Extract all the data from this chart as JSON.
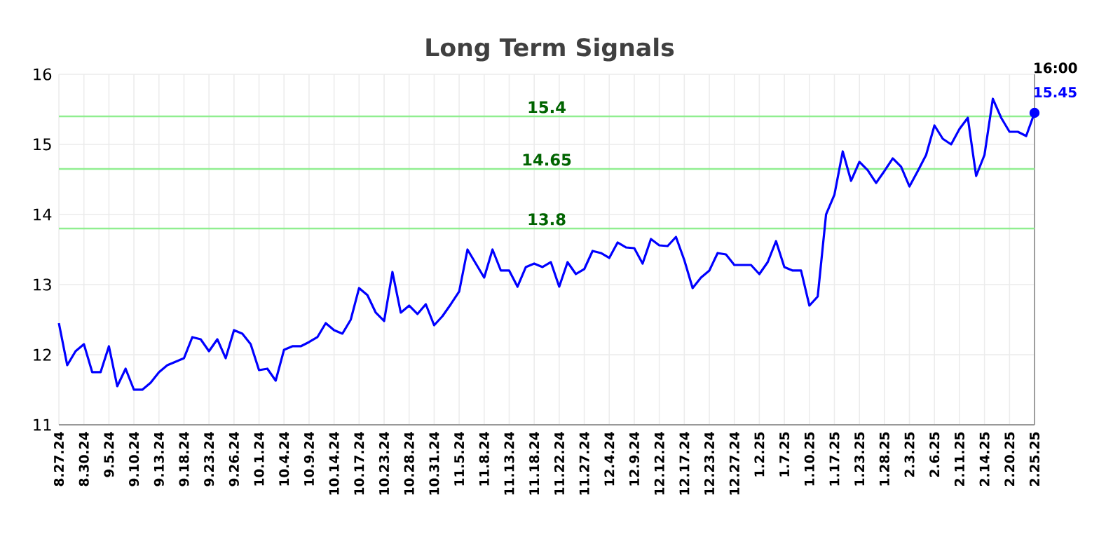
{
  "chart_data": {
    "type": "line",
    "title": "Long Term Signals",
    "categories": [
      "8.27.24",
      null,
      null,
      "8.30.24",
      null,
      null,
      "9.5.24",
      null,
      null,
      "9.10.24",
      null,
      null,
      "9.13.24",
      null,
      null,
      "9.18.24",
      null,
      null,
      "9.23.24",
      null,
      null,
      "9.26.24",
      null,
      null,
      "10.1.24",
      null,
      null,
      "10.4.24",
      null,
      null,
      "10.9.24",
      null,
      null,
      "10.14.24",
      null,
      null,
      "10.17.24",
      null,
      null,
      "10.23.24",
      null,
      null,
      "10.28.24",
      null,
      null,
      "10.31.24",
      null,
      null,
      "11.5.24",
      null,
      null,
      "11.8.24",
      null,
      null,
      "11.13.24",
      null,
      null,
      "11.18.24",
      null,
      null,
      "11.22.24",
      null,
      null,
      "11.27.24",
      null,
      null,
      "12.4.24",
      null,
      null,
      "12.9.24",
      null,
      null,
      "12.12.24",
      null,
      null,
      "12.17.24",
      null,
      null,
      "12.23.24",
      null,
      null,
      "12.27.24",
      null,
      null,
      "1.2.25",
      null,
      null,
      "1.7.25",
      null,
      null,
      "1.10.25",
      null,
      null,
      "1.17.25",
      null,
      null,
      "1.23.25",
      null,
      null,
      "1.28.25",
      null,
      null,
      "2.3.25",
      null,
      null,
      "2.6.25",
      null,
      null,
      "2.11.25",
      null,
      null,
      "2.14.25",
      null,
      null,
      "2.20.25",
      null,
      null,
      "2.25.25"
    ],
    "series": [
      {
        "color": "#0000ff",
        "values": [
          12.45,
          11.85,
          12.05,
          12.15,
          11.75,
          11.75,
          12.12,
          11.55,
          11.8,
          11.5,
          11.5,
          11.6,
          11.75,
          11.85,
          11.9,
          11.95,
          12.25,
          12.22,
          12.05,
          12.22,
          11.95,
          12.35,
          12.3,
          12.15,
          11.78,
          11.8,
          11.63,
          12.07,
          12.12,
          12.12,
          12.18,
          12.25,
          12.45,
          12.35,
          12.3,
          12.5,
          12.95,
          12.85,
          12.6,
          12.48,
          13.18,
          12.6,
          12.7,
          12.58,
          12.72,
          12.42,
          12.55,
          12.72,
          12.9,
          13.5,
          13.3,
          13.1,
          13.5,
          13.2,
          13.2,
          12.97,
          13.25,
          13.3,
          13.25,
          13.32,
          12.97,
          13.32,
          13.15,
          13.22,
          13.48,
          13.45,
          13.38,
          13.6,
          13.53,
          13.52,
          13.3,
          13.65,
          13.56,
          13.55,
          13.68,
          13.35,
          12.95,
          13.1,
          13.2,
          13.45,
          13.43,
          13.28,
          13.28,
          13.28,
          13.15,
          13.32,
          13.62,
          13.25,
          13.2,
          13.2,
          12.7,
          12.83,
          14.0,
          14.28,
          14.9,
          14.48,
          14.75,
          14.63,
          14.45,
          14.62,
          14.8,
          14.68,
          14.4,
          14.62,
          14.85,
          15.27,
          15.08,
          15.0,
          15.22,
          15.38,
          14.55,
          14.85,
          15.65,
          15.38,
          15.18,
          15.18,
          15.12,
          15.45
        ]
      },
      {
        "type": "scatter",
        "color": "#0000ff",
        "x": [
          "2.25.25"
        ],
        "values": [
          15.45
        ],
        "marker": "circle"
      }
    ],
    "ylim": [
      11,
      16
    ],
    "yticks": [
      11,
      12,
      13,
      14,
      15,
      16
    ],
    "grid": true,
    "marker": "none",
    "line_style": "solid",
    "ref_lines": [
      {
        "axis": "y",
        "value": 15.4,
        "label": "15.4",
        "color": "#90ee90"
      },
      {
        "axis": "y",
        "value": 14.65,
        "label": "14.65",
        "color": "#90ee90"
      },
      {
        "axis": "y",
        "value": 13.8,
        "label": "13.8",
        "color": "#90ee90"
      }
    ],
    "annotations": [
      {
        "text": "16:00",
        "x": "2.25.25",
        "y": 15.45
      },
      {
        "text": "15.45",
        "x": "2.25.25",
        "y": 15.45
      }
    ]
  }
}
